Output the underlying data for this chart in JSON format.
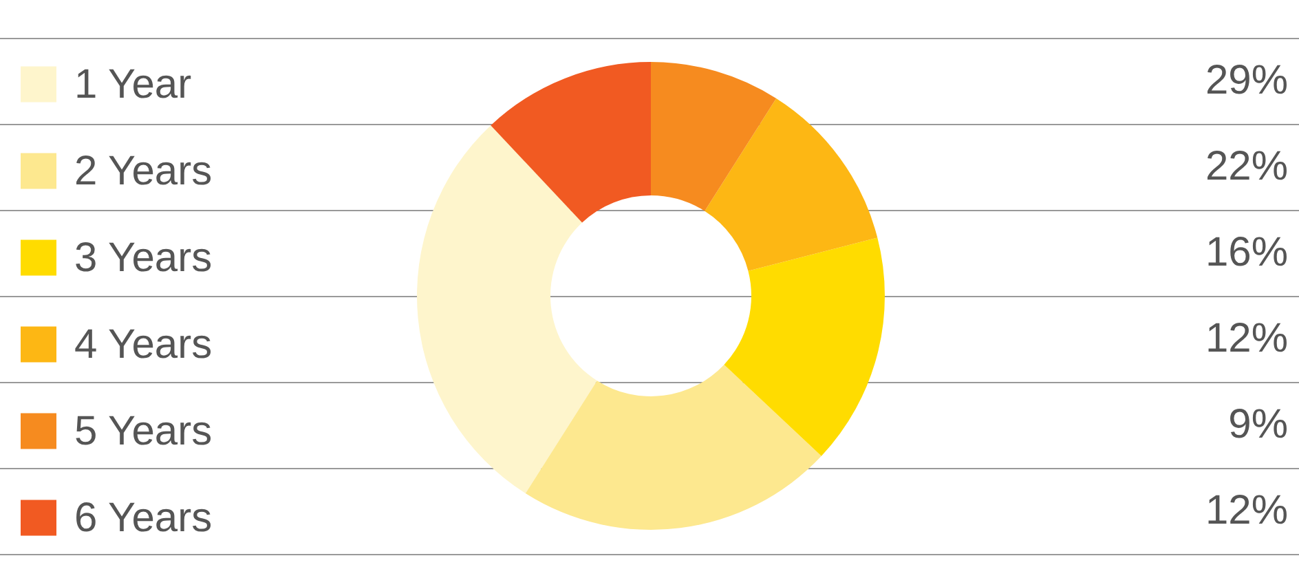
{
  "chart_data": {
    "type": "donut",
    "categories": [
      "1 Year",
      "2 Years",
      "3 Years",
      "4 Years",
      "5 Years",
      "6 Years"
    ],
    "values": [
      29,
      22,
      16,
      12,
      9,
      12
    ],
    "colors": [
      "#fef5cc",
      "#fde88f",
      "#ffdc00",
      "#fdb714",
      "#f68b1f",
      "#f15a22"
    ],
    "value_labels": [
      "29%",
      "22%",
      "16%",
      "12%",
      "9%",
      "12%"
    ],
    "legend": "left"
  }
}
